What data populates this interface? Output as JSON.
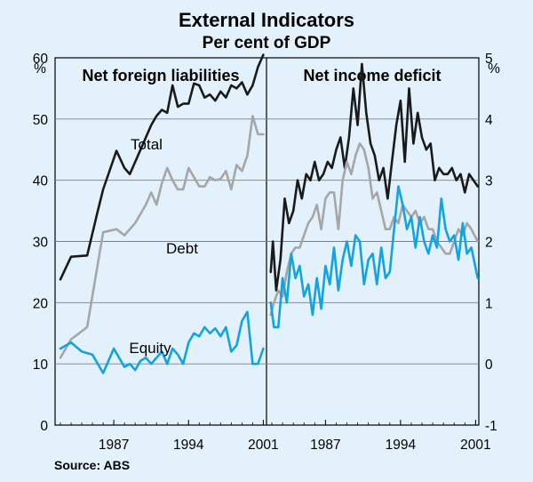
{
  "chart_data": {
    "type": "line",
    "title": "External Indicators",
    "subtitle": "Per cent of GDP",
    "source": "Source: ABS",
    "colors": {
      "total": "#1a1a1a",
      "debt": "#a6a6a6",
      "equity": "#12a3e1",
      "background": "#e2f1fb",
      "grid": "#7f7f7f"
    },
    "panels": [
      {
        "title": "Net foreign liabilities",
        "unit": "%",
        "y_axis_side": "left",
        "ylim": [
          0,
          60
        ],
        "yticks": [
          "0",
          "10",
          "20",
          "30",
          "40",
          "50",
          "60"
        ],
        "xlim": [
          1981.5,
          2001.3
        ],
        "xtick_labels": [
          "1987",
          "1994",
          "2001"
        ],
        "xtick_values": [
          1987,
          1994,
          2001
        ],
        "series": [
          {
            "name": "Total",
            "color": "#1a1a1a",
            "x": [
              1982,
              1983,
              1984.5,
              1985.5,
              1986,
              1987.25,
              1988,
              1988.5,
              1989,
              1989.5,
              1990,
              1990.5,
              1991,
              1991.5,
              1992,
              1992.5,
              1993,
              1993.5,
              1994,
              1994.5,
              1995,
              1995.5,
              1996,
              1996.5,
              1997,
              1997.5,
              1998,
              1998.5,
              1999,
              1999.5,
              2000,
              2000.5,
              2001
            ],
            "values": [
              23.8,
              27.5,
              27.7,
              35,
              38.5,
              44.8,
              42,
              41,
              43,
              45,
              47,
              49,
              50.5,
              51.5,
              51,
              55.5,
              52,
              52.5,
              52.5,
              55.8,
              55.5,
              53.5,
              54,
              53,
              54.5,
              53.5,
              55.5,
              55,
              56,
              54,
              55.5,
              58.5,
              60.5
            ]
          },
          {
            "name": "Debt",
            "color": "#a6a6a6",
            "x": [
              1982,
              1983,
              1984.5,
              1986,
              1987.25,
              1988,
              1988.5,
              1989,
              1989.5,
              1990,
              1990.5,
              1991,
              1991.5,
              1992,
              1992.5,
              1993,
              1993.5,
              1994,
              1994.5,
              1995,
              1995.5,
              1996,
              1996.5,
              1997,
              1997.5,
              1998,
              1998.5,
              1999,
              1999.5,
              2000,
              2000.5,
              2001
            ],
            "values": [
              11,
              14,
              16,
              31.5,
              32,
              31,
              32,
              33,
              34.5,
              36,
              38,
              36,
              39.5,
              42,
              40,
              38.5,
              38.5,
              42,
              40.5,
              39,
              39,
              40.5,
              40,
              40.2,
              41.5,
              38.5,
              42.5,
              41.5,
              44,
              50.5,
              47.5,
              47.5
            ]
          },
          {
            "name": "Equity",
            "color": "#12a3e1",
            "x": [
              1982,
              1983,
              1984,
              1985,
              1986,
              1987,
              1987.5,
              1988,
              1988.5,
              1989,
              1989.5,
              1990,
              1990.5,
              1991,
              1991.5,
              1992,
              1992.5,
              1993,
              1993.5,
              1994,
              1994.5,
              1995,
              1995.5,
              1996,
              1996.5,
              1997,
              1997.5,
              1998,
              1998.5,
              1999,
              1999.5,
              2000,
              2000.5,
              2001
            ],
            "values": [
              12.5,
              13.5,
              12,
              11.5,
              8.5,
              12.5,
              11,
              9.5,
              10,
              9,
              10.5,
              11,
              10,
              11,
              12,
              10,
              12.5,
              11.5,
              10,
              13.5,
              15,
              14.5,
              16,
              15,
              15.8,
              14.5,
              16,
              12,
              13,
              17,
              18.5,
              10,
              10,
              12.5
            ]
          }
        ],
        "labels": {
          "total": "Total",
          "debt": "Debt",
          "equity": "Equity"
        }
      },
      {
        "title": "Net income deficit",
        "unit": "%",
        "y_axis_side": "right",
        "ylim": [
          -1,
          5
        ],
        "yticks": [
          "-1",
          "0",
          "1",
          "2",
          "3",
          "4",
          "5"
        ],
        "xlim": [
          1981.5,
          2001.3
        ],
        "xtick_labels": [
          "1987",
          "1994",
          "2001"
        ],
        "xtick_values": [
          1987,
          1994,
          2001
        ],
        "series": [
          {
            "name": "Total",
            "color": "#1a1a1a",
            "x": [
              1981.9,
              1982.1,
              1982.4,
              1982.8,
              1983.2,
              1983.6,
              1984,
              1984.4,
              1984.8,
              1985.2,
              1985.6,
              1986,
              1986.4,
              1986.8,
              1987.2,
              1987.6,
              1988,
              1988.4,
              1988.8,
              1989.2,
              1989.6,
              1990,
              1990.4,
              1990.8,
              1991.2,
              1991.6,
              1992,
              1992.4,
              1992.8,
              1993.2,
              1993.6,
              1994,
              1994.4,
              1994.8,
              1995.2,
              1995.6,
              1996,
              1996.4,
              1996.8,
              1997.2,
              1997.6,
              1998,
              1998.4,
              1998.8,
              1999.2,
              1999.6,
              2000,
              2000.4,
              2000.8,
              2001.2
            ],
            "values": [
              1.5,
              2.0,
              1.2,
              1.7,
              2.7,
              2.3,
              2.5,
              3.0,
              2.7,
              3.1,
              3.0,
              3.3,
              3.0,
              3.1,
              3.3,
              3.2,
              3.5,
              3.7,
              3.2,
              3.7,
              4.5,
              3.9,
              4.9,
              4.1,
              3.6,
              3.4,
              3.0,
              3.2,
              2.7,
              3.3,
              3.9,
              4.3,
              3.3,
              4.5,
              3.6,
              4.1,
              3.7,
              3.5,
              3.6,
              3.0,
              3.2,
              3.1,
              3.1,
              3.2,
              3.0,
              3.1,
              2.8,
              3.1,
              3.0,
              2.9
            ]
          },
          {
            "name": "Debt",
            "color": "#a6a6a6",
            "x": [
              1981.9,
              1982.2,
              1982.6,
              1983,
              1983.4,
              1983.8,
              1984.2,
              1984.6,
              1985,
              1985.4,
              1985.8,
              1986.2,
              1986.6,
              1987,
              1987.4,
              1987.8,
              1988.2,
              1988.6,
              1989,
              1989.4,
              1989.8,
              1990.2,
              1990.6,
              1991,
              1991.4,
              1991.8,
              1992.2,
              1992.6,
              1993,
              1993.4,
              1993.8,
              1994.2,
              1994.6,
              1995,
              1995.4,
              1995.8,
              1996.2,
              1996.6,
              1997,
              1997.4,
              1997.8,
              1998.2,
              1998.6,
              1999,
              1999.4,
              1999.8,
              2000.2,
              2000.6,
              2001.2
            ],
            "values": [
              0.8,
              1.0,
              1.2,
              1.1,
              1.5,
              1.8,
              1.9,
              1.9,
              2.1,
              2.3,
              2.4,
              2.6,
              2.2,
              2.7,
              2.8,
              2.8,
              2.2,
              3.0,
              3.3,
              3.1,
              3.4,
              3.6,
              3.5,
              3.2,
              2.7,
              2.8,
              2.5,
              2.2,
              2.2,
              2.4,
              2.3,
              2.6,
              2.5,
              2.4,
              2.5,
              2.3,
              2.4,
              2.2,
              2.2,
              2.0,
              1.9,
              1.8,
              1.8,
              2.0,
              2.2,
              2.1,
              2.3,
              2.2,
              2.0
            ]
          },
          {
            "name": "Equity",
            "color": "#12a3e1",
            "x": [
              1981.9,
              1982.2,
              1982.6,
              1983,
              1983.4,
              1983.8,
              1984.2,
              1984.6,
              1985,
              1985.4,
              1985.8,
              1986.2,
              1986.6,
              1987,
              1987.4,
              1987.8,
              1988.2,
              1988.6,
              1989,
              1989.4,
              1989.8,
              1990.2,
              1990.6,
              1991,
              1991.4,
              1991.8,
              1992.2,
              1992.6,
              1993,
              1993.4,
              1993.8,
              1994.2,
              1994.6,
              1995,
              1995.4,
              1995.8,
              1996.2,
              1996.6,
              1997,
              1997.4,
              1997.8,
              1998.2,
              1998.6,
              1999,
              1999.4,
              1999.8,
              2000.2,
              2000.6,
              2001.2
            ],
            "values": [
              1.0,
              0.6,
              0.6,
              1.4,
              1.0,
              1.8,
              1.4,
              1.6,
              1.1,
              1.3,
              0.8,
              1.4,
              0.9,
              1.6,
              1.3,
              1.9,
              1.2,
              1.7,
              2.0,
              1.6,
              2.1,
              2.0,
              1.3,
              1.7,
              1.8,
              1.3,
              1.9,
              1.4,
              1.5,
              2.2,
              2.9,
              2.6,
              2.2,
              2.4,
              1.9,
              2.4,
              2.0,
              1.8,
              2.1,
              1.9,
              2.7,
              2.2,
              2.0,
              2.1,
              1.7,
              2.3,
              1.8,
              1.9,
              1.4
            ]
          }
        ]
      }
    ]
  }
}
